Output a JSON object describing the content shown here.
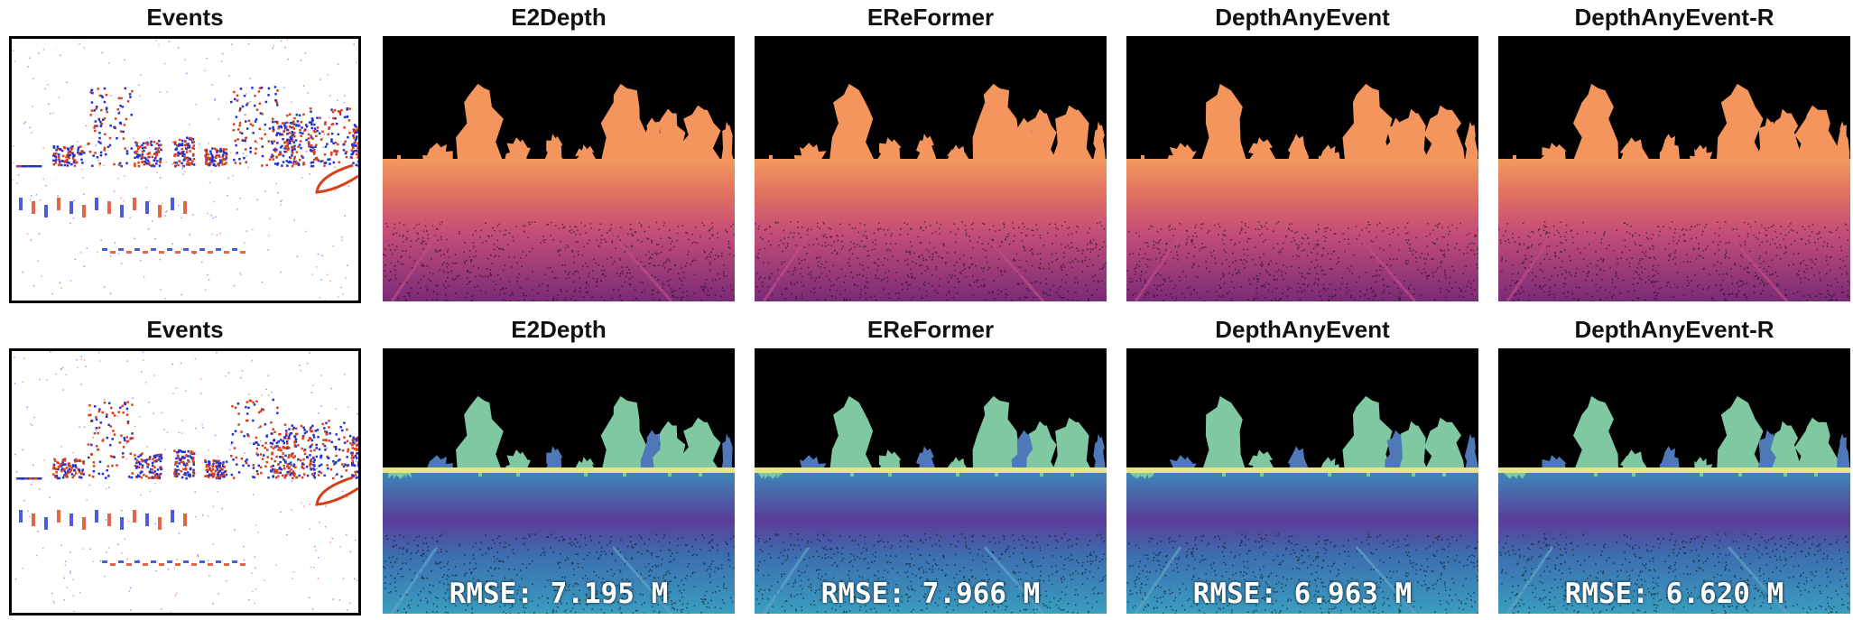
{
  "rows": [
    {
      "kind": "depth-magma",
      "panels": [
        {
          "title": "Events",
          "type": "events"
        },
        {
          "title": "E2Depth",
          "type": "depth"
        },
        {
          "title": "EReFormer",
          "type": "depth"
        },
        {
          "title": "DepthAnyEvent",
          "type": "depth"
        },
        {
          "title": "DepthAnyEvent-R",
          "type": "depth"
        }
      ]
    },
    {
      "kind": "error-viridis",
      "panels": [
        {
          "title": "Events",
          "type": "events"
        },
        {
          "title": "E2Depth",
          "type": "error",
          "metric": "RMSE: 7.195 M"
        },
        {
          "title": "EReFormer",
          "type": "error",
          "metric": "RMSE: 7.966 M"
        },
        {
          "title": "DepthAnyEvent",
          "type": "error",
          "metric": "RMSE: 6.963 M"
        },
        {
          "title": "DepthAnyEvent-R",
          "type": "error",
          "metric": "RMSE: 6.620 M"
        }
      ]
    }
  ],
  "colors": {
    "background": "#ffffff",
    "sky": "#000000",
    "events_positive": "#2033d0",
    "events_negative": "#d8401a",
    "magma_trees": "#f3955c",
    "magma_ground": "#b8407a",
    "viridis_trees": "#7fc8a2",
    "viridis_ground": "#5a3d9a"
  }
}
